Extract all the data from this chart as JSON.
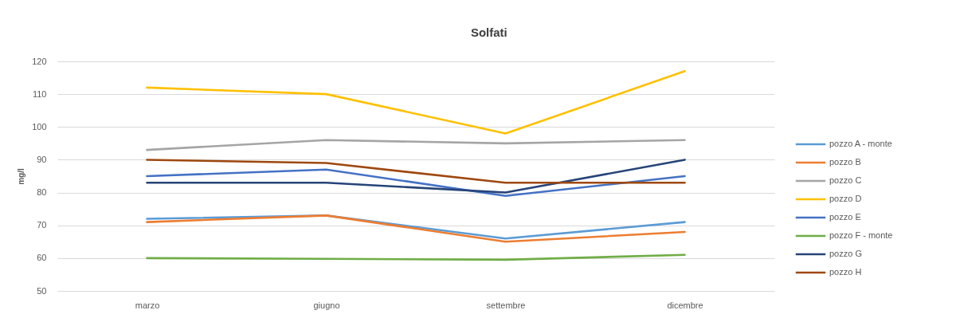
{
  "chart_data": {
    "type": "line",
    "title": "Solfati",
    "ylabel": "mg/l",
    "categories": [
      "marzo",
      "giugno",
      "settembre",
      "dicembre"
    ],
    "series": [
      {
        "name": "pozzo A - monte",
        "color": "#5b9bd5",
        "values": [
          72,
          73,
          66,
          71
        ]
      },
      {
        "name": "pozzo B",
        "color": "#ed7d31",
        "values": [
          71,
          73,
          65,
          68
        ]
      },
      {
        "name": "pozzo C",
        "color": "#a5a5a5",
        "values": [
          93,
          96,
          95,
          96
        ]
      },
      {
        "name": "pozzo D",
        "color": "#ffc000",
        "values": [
          112,
          110,
          98,
          117
        ]
      },
      {
        "name": "pozzo E",
        "color": "#4472c4",
        "values": [
          85,
          87,
          79,
          85
        ]
      },
      {
        "name": "pozzo F - monte",
        "color": "#70ad47",
        "values": [
          60,
          59.8,
          59.5,
          61
        ]
      },
      {
        "name": "pozzo G",
        "color": "#264478",
        "values": [
          83,
          83,
          80,
          90
        ]
      },
      {
        "name": "pozzo H",
        "color": "#9e480e",
        "values": [
          90,
          89,
          83,
          83
        ]
      }
    ],
    "ylim": [
      50,
      120
    ],
    "yticks": [
      50,
      60,
      70,
      80,
      90,
      100,
      110,
      120
    ],
    "grid": "y",
    "legend": "right",
    "line_style": "solid"
  }
}
